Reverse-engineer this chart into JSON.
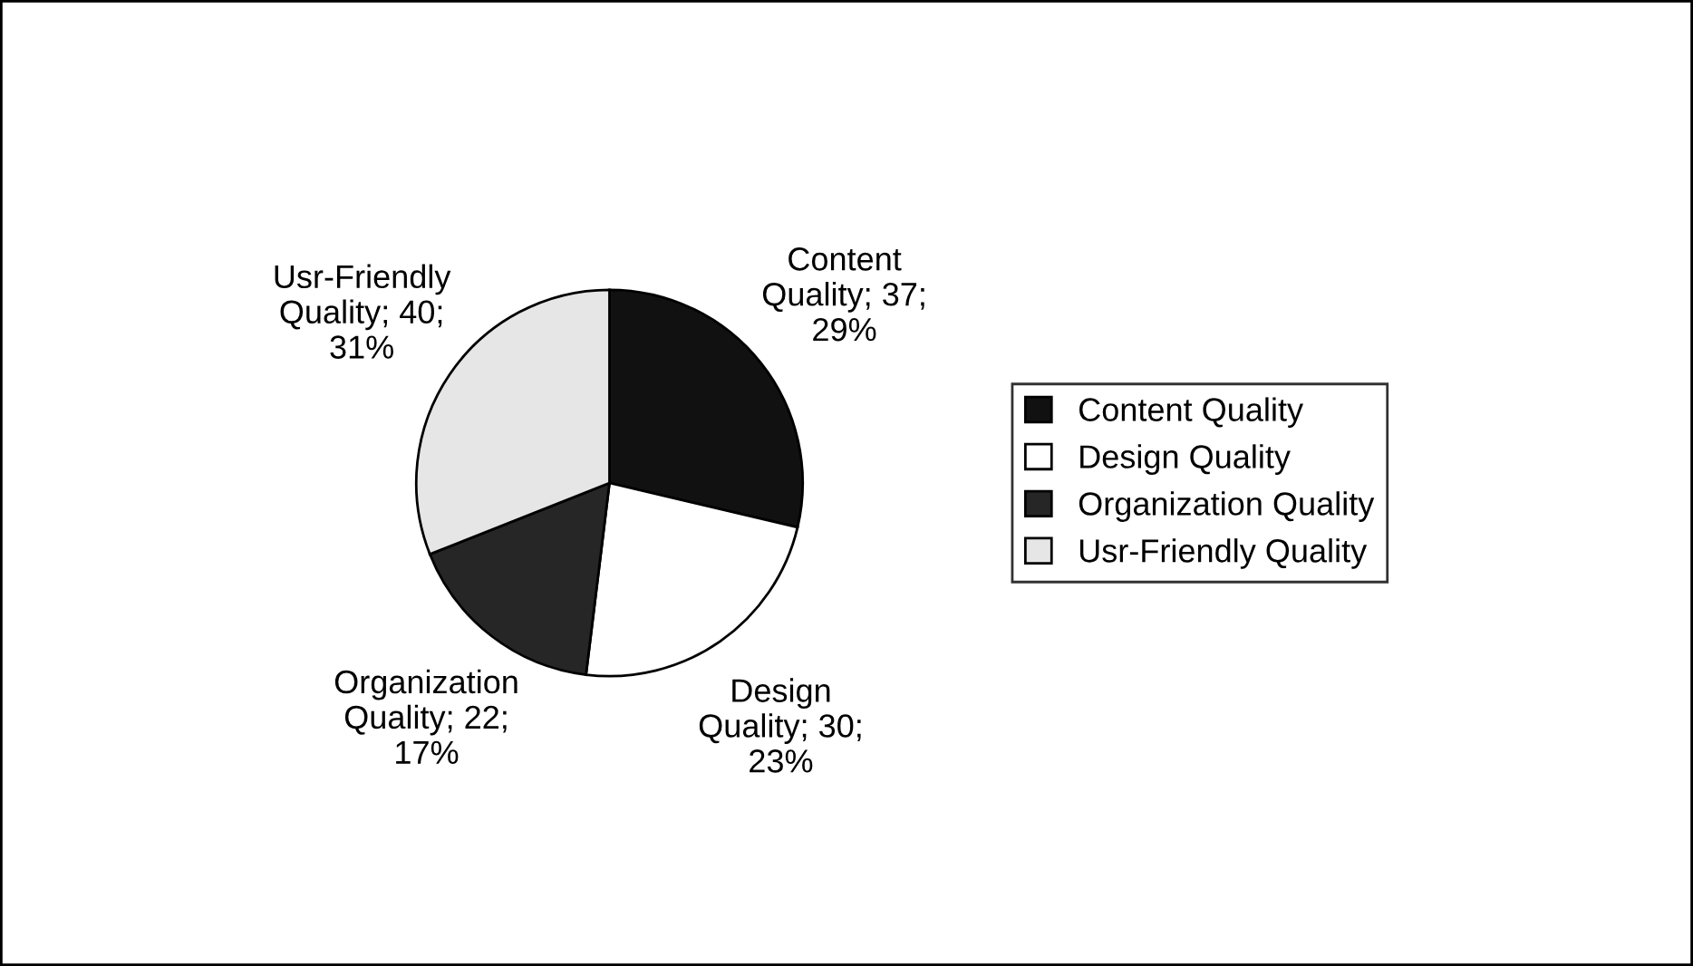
{
  "chart_data": {
    "type": "pie",
    "categories": [
      "Content Quality",
      "Design Quality",
      "Organization Quality",
      "Usr-Friendly Quality"
    ],
    "values": [
      37,
      30,
      22,
      40
    ],
    "colors": [
      "#111111",
      "#ffffff",
      "#262626",
      "#e6e6e6"
    ],
    "value_labels": [
      "Content\nQuality; 37;\n29%",
      "Design\nQuality; 30;\n23%",
      "Organization\nQuality; 22;\n17%",
      "Usr-Friendly\nQuality; 40;\n31%"
    ],
    "legend": "right"
  }
}
